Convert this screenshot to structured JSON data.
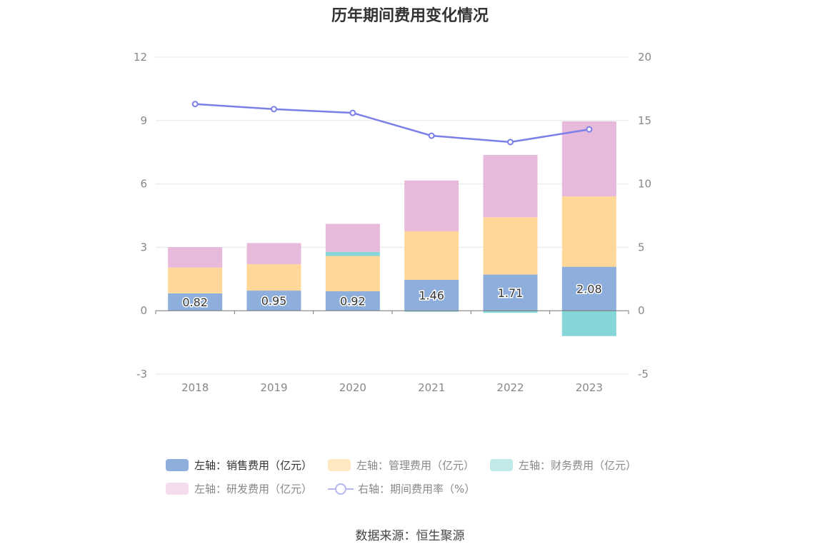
{
  "chart_data": {
    "type": "bar",
    "title": "历年期间费用变化情况",
    "categories": [
      "2018",
      "2019",
      "2020",
      "2021",
      "2022",
      "2023"
    ],
    "y_left": {
      "ticks": [
        "12",
        "9",
        "6",
        "3",
        "0",
        "-3"
      ],
      "ylim": [
        -3,
        12
      ]
    },
    "y_right": {
      "ticks": [
        "20",
        "15",
        "10",
        "5",
        "0",
        "-5"
      ],
      "ylim": [
        -5,
        20
      ]
    },
    "grid": true,
    "legend_position": "bottom",
    "series": [
      {
        "name": "左轴：销售费用（亿元）",
        "type": "bar",
        "axis": "left",
        "color": "#8eaedc",
        "values": [
          0.82,
          0.95,
          0.92,
          1.46,
          1.71,
          2.08
        ],
        "labels": [
          "0.82",
          "0.95",
          "0.92",
          "1.46",
          "1.71",
          "2.08"
        ]
      },
      {
        "name": "左轴：管理费用（亿元）",
        "type": "bar",
        "axis": "left",
        "color": "#ffd899",
        "values": [
          1.22,
          1.25,
          1.67,
          2.3,
          2.71,
          3.33
        ]
      },
      {
        "name": "左轴：财务费用（亿元）",
        "type": "bar",
        "axis": "left",
        "color": "#85d6d7",
        "values": [
          0.0,
          0.0,
          0.19,
          -0.05,
          -0.1,
          -1.2
        ]
      },
      {
        "name": "左轴：研发费用（亿元）",
        "type": "bar",
        "axis": "left",
        "color": "#e7b9da",
        "values": [
          0.97,
          1.0,
          1.33,
          2.4,
          2.95,
          3.55
        ]
      },
      {
        "name": "右轴：期间费用率（%）",
        "type": "line",
        "axis": "right",
        "color": "#7b7fe8",
        "values": [
          16.3,
          15.9,
          15.6,
          13.8,
          13.3,
          14.3
        ]
      }
    ]
  },
  "source": "数据来源：恒生聚源"
}
